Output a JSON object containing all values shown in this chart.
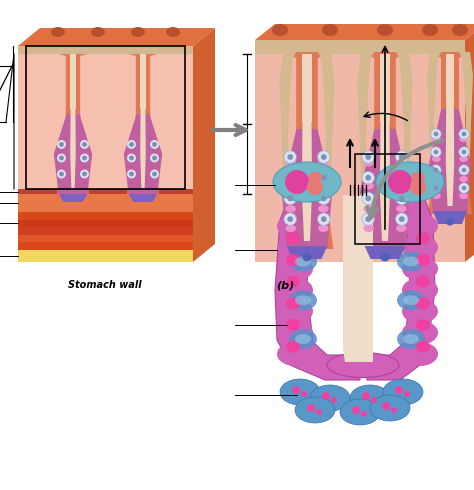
{
  "bg_color": "#ffffff",
  "fig_width": 4.74,
  "fig_height": 4.9,
  "dpi": 100,
  "colors": {
    "wall_orange": "#e8834a",
    "wall_pink_light": "#f5c0a8",
    "wall_pink_mucosa": "#f0b8a0",
    "mucosa_surface": "#d4b896",
    "top_orange": "#e07040",
    "side_orange": "#d06030",
    "pit_outer": "#e07855",
    "pit_surface": "#d4b896",
    "gland_purple": "#c060a0",
    "gland_dark": "#9040a0",
    "gland_pink": "#e090c0",
    "lumen_beige": "#f0d8c0",
    "cell_grey_outer": "#d0d8e8",
    "cell_grey_inner": "#8090a8",
    "blue_cell_base": "#5080b8",
    "serosa_yellow": "#f0d870",
    "muscularis_dark": "#cc4820",
    "submucosa_orange": "#e06840",
    "muscularis_mucosa": "#c85030",
    "cell_pink_big": "#d858a8",
    "cell_teal": "#60a898",
    "pink_vesicle": "#e84080",
    "lumen_canalicular": "#f2e0c8",
    "parietal_purple": "#b848a8",
    "chief_blue": "#5890c8",
    "arrow_grey": "#888888",
    "bracket_black": "#000000"
  }
}
